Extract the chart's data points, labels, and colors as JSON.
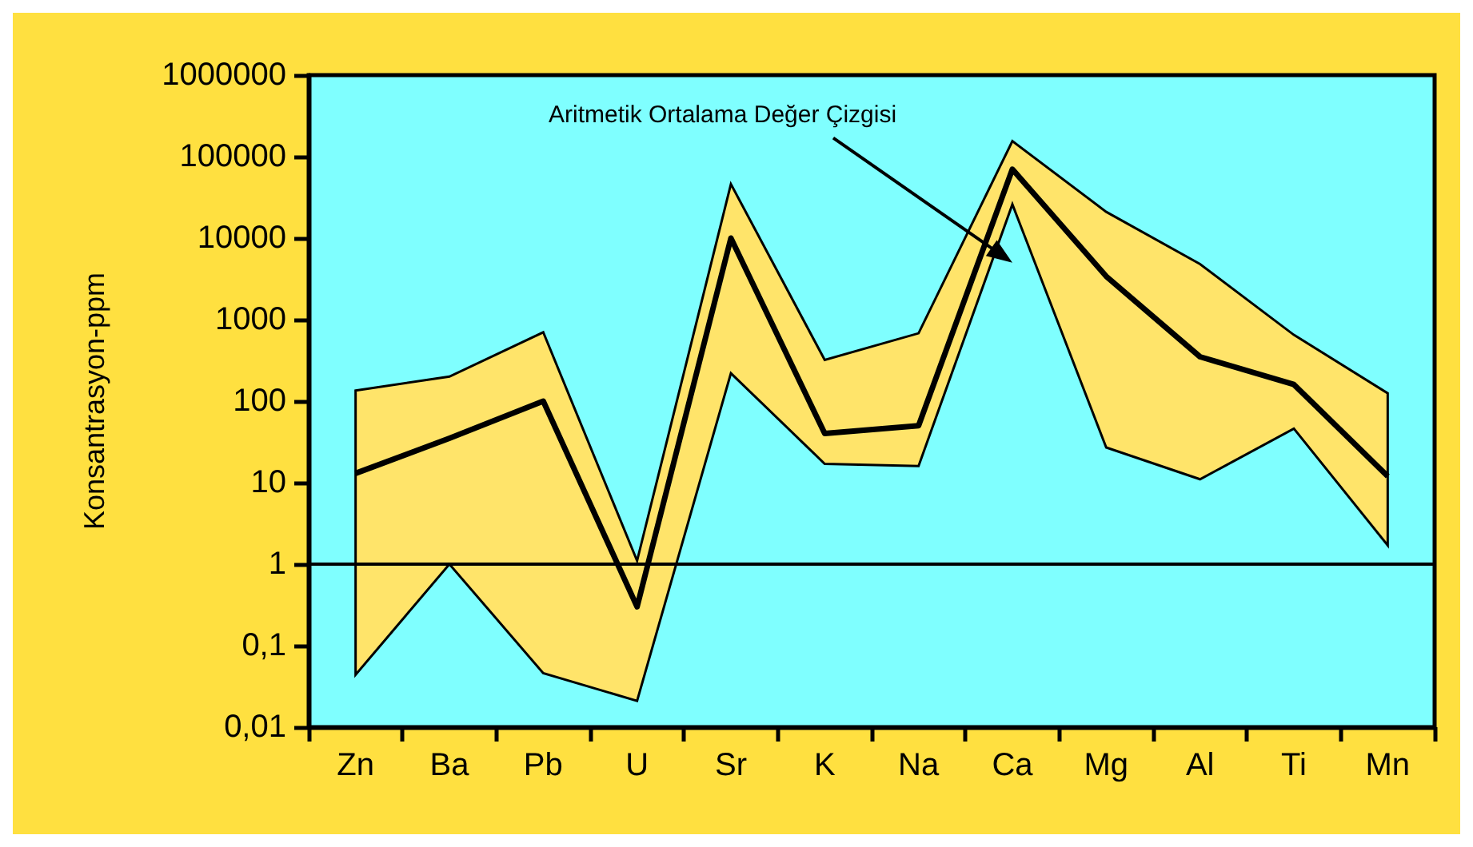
{
  "chart_data": {
    "type": "line",
    "ylabel": "Konsantrasyon-ppm",
    "categories": [
      "Zn",
      "Ba",
      "Pb",
      "U",
      "Sr",
      "K",
      "Na",
      "Ca",
      "Mg",
      "Al",
      "Ti",
      "Mn"
    ],
    "series": [
      {
        "color": "#000000",
        "values": [
          13,
          35,
          100,
          0.3,
          10000,
          40,
          50,
          70000,
          3400,
          350,
          160,
          12
        ],
        "lower": [
          0.044,
          1,
          0.046,
          0.021,
          220,
          17,
          16,
          26000,
          27,
          11,
          46,
          1.7
        ],
        "upper": [
          135,
          200,
          700,
          1.1,
          46000,
          320,
          680,
          155000,
          21000,
          4800,
          650,
          125
        ]
      }
    ],
    "log": "y",
    "ylim": [
      0.01,
      1000000
    ],
    "yticks": [
      {
        "value": 0.01,
        "label": "0,01"
      },
      {
        "value": 0.1,
        "label": "0,1"
      },
      1,
      10,
      100,
      1000,
      10000,
      100000,
      1000000
    ],
    "ref_lines": [
      {
        "axis": "y",
        "value": 1,
        "color": "#000000"
      }
    ],
    "annotations": [
      "Aritmetik Ortalama Değer Çizgisi"
    ],
    "grid": false,
    "marker": "none",
    "line_style": "solid"
  }
}
